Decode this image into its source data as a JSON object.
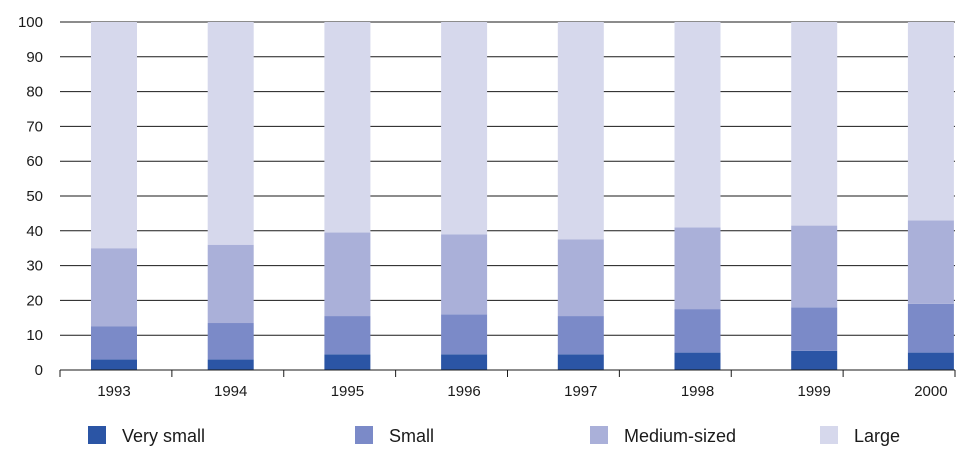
{
  "chart_data": {
    "type": "bar",
    "stacked": true,
    "categories": [
      "1993",
      "1994",
      "1995",
      "1996",
      "1997",
      "1998",
      "1999",
      "2000"
    ],
    "series": [
      {
        "name": "Very small",
        "color": "#2b55a5",
        "values": [
          3,
          3,
          4.5,
          4.5,
          4.5,
          5,
          5.5,
          5
        ]
      },
      {
        "name": "Small",
        "color": "#7b8ac8",
        "values": [
          9.5,
          10.5,
          11,
          11.5,
          11,
          12.5,
          12.5,
          14
        ]
      },
      {
        "name": "Medium-sized",
        "color": "#aab0d9",
        "values": [
          22.5,
          22.5,
          24,
          23,
          22,
          23.5,
          23.5,
          24
        ]
      },
      {
        "name": "Large",
        "color": "#d6d8ec",
        "values": [
          65,
          64,
          60.5,
          61,
          62.5,
          59,
          58.5,
          57
        ]
      }
    ],
    "ylim": [
      0,
      100
    ],
    "yticks": [
      0,
      10,
      20,
      30,
      40,
      50,
      60,
      70,
      80,
      90,
      100
    ],
    "grid": true,
    "legend_position": "bottom"
  }
}
